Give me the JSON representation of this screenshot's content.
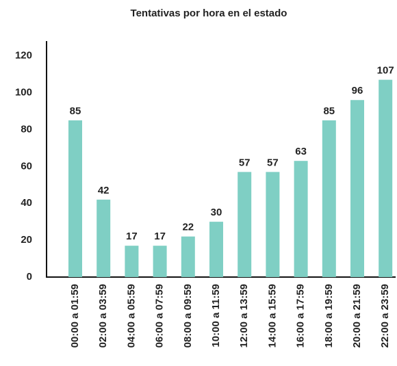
{
  "chart_data": {
    "type": "bar",
    "title": "Tentativas por hora en el estado",
    "categories": [
      "00:00 a 01:59",
      "02:00 a 03:59",
      "04:00 a 05:59",
      "06:00 a 07:59",
      "08:00 a 09:59",
      "10:00 a 11:59",
      "12:00 a 13:59",
      "14:00 a 15:59",
      "16:00 a 17:59",
      "18:00 a 19:59",
      "20:00 a 21:59",
      "22:00 a 23:59"
    ],
    "values": [
      85,
      42,
      17,
      17,
      22,
      30,
      57,
      57,
      63,
      85,
      96,
      107
    ],
    "color": "#7fcfc4",
    "ylim": [
      0,
      128
    ],
    "yticks": [
      0,
      20,
      40,
      60,
      80,
      100,
      120
    ],
    "grid": false
  }
}
